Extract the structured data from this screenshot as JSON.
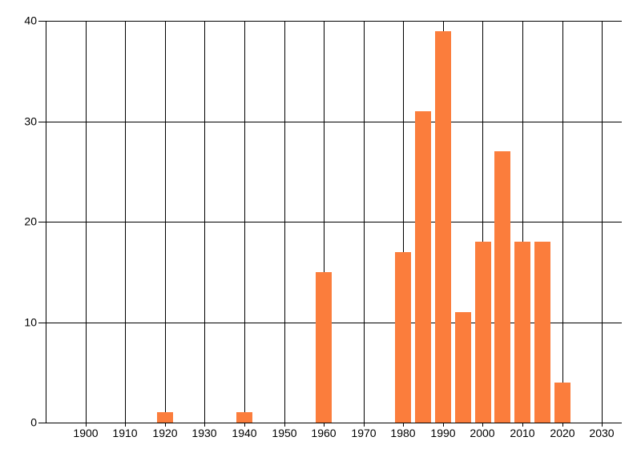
{
  "chart_data": {
    "type": "bar",
    "title": "",
    "xlabel": "",
    "ylabel": "",
    "x": [
      1920,
      1940,
      1960,
      1980,
      1985,
      1990,
      1995,
      2000,
      2005,
      2010,
      2015,
      2020
    ],
    "values": [
      1,
      1,
      15,
      17,
      31,
      39,
      11,
      18,
      27,
      18,
      18,
      4
    ],
    "bar_width_years": 4,
    "xlim": [
      1890,
      2035
    ],
    "ylim": [
      0,
      40
    ],
    "x_ticks": [
      1900,
      1910,
      1920,
      1930,
      1940,
      1950,
      1960,
      1970,
      1980,
      1990,
      2000,
      2010,
      2020,
      2030
    ],
    "x_tick_labels": [
      "1900",
      "1910",
      "1920",
      "1930",
      "1940",
      "1950",
      "1960",
      "1970",
      "1980",
      "1990",
      "2000",
      "2010",
      "2020",
      "2030"
    ],
    "y_ticks": [
      0,
      10,
      20,
      30,
      40
    ],
    "y_tick_labels": [
      "0",
      "10",
      "20",
      "30",
      "40"
    ],
    "grid": "both",
    "legend_position": "none",
    "colors": {
      "bar": "#fb7d3c",
      "gridline": "#000000",
      "axis_text": "#000000",
      "background": "#ffffff"
    }
  }
}
